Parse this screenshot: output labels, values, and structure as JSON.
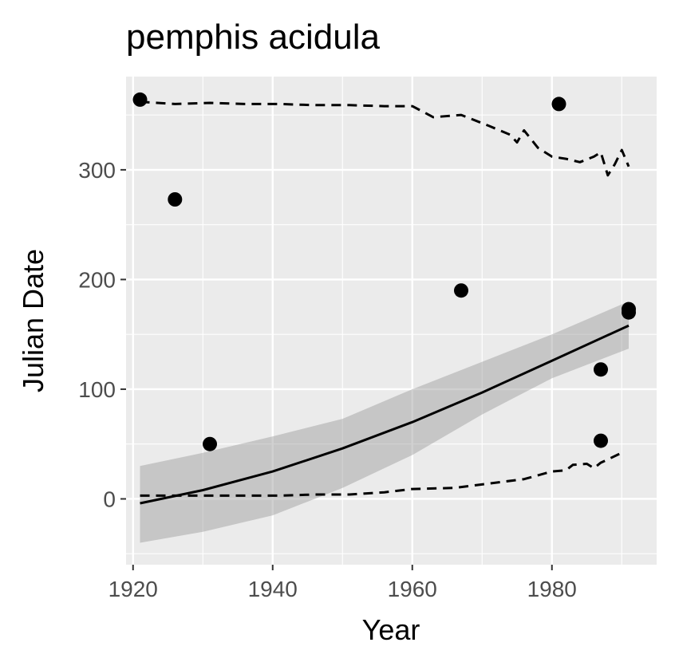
{
  "chart_data": {
    "type": "scatter",
    "title": "pemphis acidula",
    "xlabel": "Year",
    "ylabel": "Julian Date",
    "xlim": [
      1919,
      1995
    ],
    "ylim": [
      -60,
      385
    ],
    "x_ticks": [
      1920,
      1940,
      1960,
      1980
    ],
    "y_ticks": [
      0,
      100,
      200,
      300
    ],
    "grid": true,
    "legend": "none",
    "points": [
      {
        "x": 1921,
        "y": 364
      },
      {
        "x": 1926,
        "y": 273
      },
      {
        "x": 1931,
        "y": 50
      },
      {
        "x": 1967,
        "y": 190
      },
      {
        "x": 1981,
        "y": 360
      },
      {
        "x": 1987,
        "y": 118
      },
      {
        "x": 1987,
        "y": 53
      },
      {
        "x": 1991,
        "y": 170
      },
      {
        "x": 1991,
        "y": 173
      }
    ],
    "trend_line": {
      "x": [
        1921,
        1930,
        1940,
        1950,
        1960,
        1970,
        1980,
        1991
      ],
      "y": [
        -4,
        8,
        25,
        46,
        70,
        97,
        126,
        158
      ]
    },
    "confidence_band": {
      "x": [
        1921,
        1930,
        1940,
        1950,
        1960,
        1970,
        1980,
        1991
      ],
      "lower": [
        -40,
        -30,
        -15,
        10,
        40,
        77,
        110,
        137
      ],
      "upper": [
        30,
        42,
        57,
        73,
        100,
        125,
        150,
        180
      ]
    },
    "upper_quantile": {
      "x": [
        1921,
        1926,
        1931,
        1936,
        1941,
        1946,
        1951,
        1956,
        1960,
        1963,
        1967,
        1971,
        1974,
        1975,
        1976,
        1978,
        1980,
        1982,
        1984,
        1986,
        1987,
        1988,
        1989,
        1990,
        1991
      ],
      "y": [
        362,
        360,
        361,
        360,
        360,
        359,
        359,
        358,
        358,
        348,
        350,
        340,
        332,
        325,
        336,
        320,
        312,
        310,
        307,
        312,
        316,
        295,
        305,
        318,
        303
      ]
    },
    "lower_quantile": {
      "x": [
        1921,
        1926,
        1931,
        1936,
        1941,
        1946,
        1951,
        1956,
        1960,
        1966,
        1971,
        1976,
        1980,
        1982,
        1983,
        1985,
        1986,
        1987,
        1988,
        1990
      ],
      "y": [
        3,
        3,
        3,
        3,
        3,
        4,
        4,
        6,
        9,
        10,
        14,
        18,
        25,
        26,
        31,
        32,
        28,
        33,
        36,
        42
      ]
    }
  }
}
